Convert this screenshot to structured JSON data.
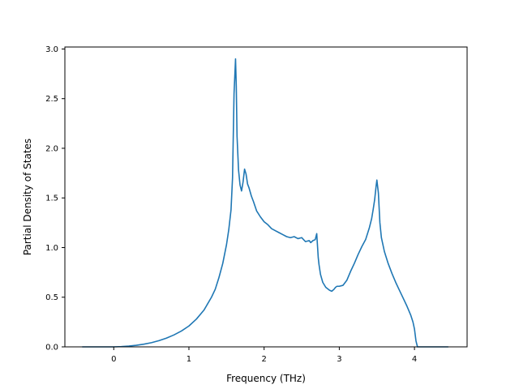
{
  "chart_data": {
    "type": "line",
    "title": "",
    "xlabel": "Frequency (THz)",
    "ylabel": "Partial Density of States",
    "xlim": [
      -0.65,
      4.7
    ],
    "ylim": [
      0.0,
      3.02
    ],
    "xticks": [
      0,
      1,
      2,
      3,
      4
    ],
    "xtick_labels": [
      "0",
      "1",
      "2",
      "3",
      "4"
    ],
    "yticks": [
      0.0,
      0.5,
      1.0,
      1.5,
      2.0,
      2.5,
      3.0
    ],
    "ytick_labels": [
      "0.0",
      "0.5",
      "1.0",
      "1.5",
      "2.0",
      "2.5",
      "3.0"
    ],
    "grid": false,
    "line_color": "#1f77b4",
    "series": [
      {
        "x": [
          -0.42,
          0.0,
          0.1,
          0.2,
          0.3,
          0.4,
          0.5,
          0.6,
          0.7,
          0.8,
          0.9,
          1.0,
          1.1,
          1.2,
          1.3,
          1.35,
          1.4,
          1.45,
          1.5,
          1.53,
          1.56,
          1.58,
          1.6,
          1.62,
          1.63,
          1.64,
          1.66,
          1.68,
          1.7,
          1.72,
          1.74,
          1.76,
          1.78,
          1.8,
          1.83,
          1.86,
          1.9,
          1.95,
          2.0,
          2.05,
          2.1,
          2.15,
          2.2,
          2.25,
          2.3,
          2.35,
          2.4,
          2.45,
          2.5,
          2.55,
          2.6,
          2.62,
          2.65,
          2.68,
          2.7,
          2.72,
          2.73,
          2.75,
          2.78,
          2.82,
          2.87,
          2.9,
          2.93,
          2.95,
          2.97,
          3.0,
          3.05,
          3.1,
          3.15,
          3.2,
          3.25,
          3.3,
          3.35,
          3.4,
          3.43,
          3.45,
          3.47,
          3.49,
          3.5,
          3.52,
          3.54,
          3.56,
          3.6,
          3.65,
          3.7,
          3.75,
          3.8,
          3.85,
          3.9,
          3.95,
          3.98,
          4.0,
          4.02,
          4.04,
          4.1,
          4.2,
          4.3,
          4.45
        ],
        "y": [
          0.0,
          0.0,
          0.003,
          0.008,
          0.016,
          0.027,
          0.042,
          0.062,
          0.088,
          0.12,
          0.16,
          0.21,
          0.28,
          0.37,
          0.5,
          0.58,
          0.7,
          0.84,
          1.03,
          1.18,
          1.38,
          1.7,
          2.55,
          2.9,
          2.62,
          2.12,
          1.78,
          1.63,
          1.57,
          1.66,
          1.79,
          1.74,
          1.64,
          1.6,
          1.52,
          1.46,
          1.37,
          1.31,
          1.26,
          1.23,
          1.19,
          1.17,
          1.15,
          1.13,
          1.11,
          1.1,
          1.11,
          1.09,
          1.1,
          1.06,
          1.07,
          1.05,
          1.07,
          1.08,
          1.14,
          0.9,
          0.83,
          0.73,
          0.65,
          0.6,
          0.57,
          0.56,
          0.58,
          0.6,
          0.61,
          0.61,
          0.62,
          0.67,
          0.76,
          0.84,
          0.93,
          1.01,
          1.08,
          1.2,
          1.29,
          1.38,
          1.48,
          1.62,
          1.68,
          1.55,
          1.25,
          1.1,
          0.96,
          0.84,
          0.74,
          0.65,
          0.57,
          0.49,
          0.41,
          0.32,
          0.25,
          0.18,
          0.06,
          0.0,
          0.0,
          0.0,
          0.0,
          0.0
        ]
      }
    ]
  }
}
